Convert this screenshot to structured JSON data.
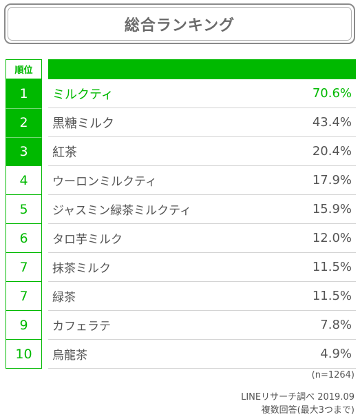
{
  "title": "総合ランキング",
  "header": {
    "rank_label": "順位"
  },
  "chart_data": {
    "type": "table",
    "columns": [
      "順位",
      "",
      ""
    ],
    "rows": [
      {
        "rank": "1",
        "name": "ミルクティ",
        "value": "70.6%"
      },
      {
        "rank": "2",
        "name": "黒糖ミルク",
        "value": "43.4%"
      },
      {
        "rank": "3",
        "name": "紅茶",
        "value": "20.4%"
      },
      {
        "rank": "4",
        "name": "ウーロンミルクティ",
        "value": "17.9%"
      },
      {
        "rank": "5",
        "name": "ジャスミン緑茶ミルクティ",
        "value": "15.9%"
      },
      {
        "rank": "6",
        "name": "タロ芋ミルク",
        "value": "12.0%"
      },
      {
        "rank": "7",
        "name": "抹茶ミルク",
        "value": "11.5%"
      },
      {
        "rank": "7",
        "name": "緑茶",
        "value": "11.5%"
      },
      {
        "rank": "9",
        "name": "カフェラテ",
        "value": "7.8%"
      },
      {
        "rank": "10",
        "name": "烏龍茶",
        "value": "4.9%"
      }
    ]
  },
  "footer": {
    "sample": "(n=1264)",
    "source": "LINEリサーチ調べ 2019.09",
    "method": "複数回答(最大3つまで)"
  },
  "colors": {
    "accent": "#00b900",
    "text": "#555555",
    "divider": "#d4d4d4"
  }
}
